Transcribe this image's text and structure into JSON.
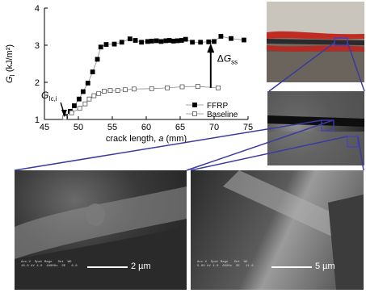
{
  "chart_data": {
    "type": "line",
    "xlabel_prefix": "crack length, ",
    "xlabel_var": "a",
    "xlabel_suffix": " (mm)",
    "ylabel_var": "G",
    "ylabel_sub": "I",
    "ylabel_unit": " (kJ/m²)",
    "xlim": [
      45,
      75
    ],
    "ylim": [
      1,
      4
    ],
    "x_ticks": [
      "45",
      "50",
      "55",
      "60",
      "65",
      "70",
      "75"
    ],
    "y_ticks": [
      "1",
      "2",
      "3",
      "4"
    ],
    "grid": false,
    "legend_position": "bottom-right",
    "series": [
      {
        "name": "FFRP",
        "marker": "filled-square",
        "points": [
          [
            48.1,
            1.08
          ],
          [
            48.8,
            1.22
          ],
          [
            49.4,
            1.37
          ],
          [
            50.1,
            1.55
          ],
          [
            50.7,
            1.75
          ],
          [
            51.4,
            1.98
          ],
          [
            52.1,
            2.28
          ],
          [
            52.8,
            2.62
          ],
          [
            53.3,
            2.95
          ],
          [
            54.1,
            3.02
          ],
          [
            55.3,
            3.03
          ],
          [
            56.4,
            3.08
          ],
          [
            57.6,
            3.17
          ],
          [
            58.4,
            3.13
          ],
          [
            59.3,
            3.08
          ],
          [
            60.2,
            3.1
          ],
          [
            60.8,
            3.11
          ],
          [
            61.5,
            3.12
          ],
          [
            62.2,
            3.1
          ],
          [
            62.9,
            3.12
          ],
          [
            63.4,
            3.13
          ],
          [
            64.0,
            3.11
          ],
          [
            64.6,
            3.12
          ],
          [
            65.2,
            3.13
          ],
          [
            65.8,
            3.16
          ],
          [
            66.8,
            3.08
          ],
          [
            68.0,
            3.08
          ],
          [
            69.2,
            3.09
          ],
          [
            70.0,
            3.1
          ],
          [
            71.0,
            3.24
          ],
          [
            72.5,
            3.18
          ],
          [
            74.4,
            3.14
          ]
        ]
      },
      {
        "name": "Baseline",
        "marker": "open-square",
        "points": [
          [
            48.0,
            1.05
          ],
          [
            49.0,
            1.18
          ],
          [
            50.2,
            1.3
          ],
          [
            51.0,
            1.42
          ],
          [
            51.6,
            1.55
          ],
          [
            52.3,
            1.64
          ],
          [
            53.0,
            1.7
          ],
          [
            53.8,
            1.76
          ],
          [
            54.7,
            1.78
          ],
          [
            55.8,
            1.78
          ],
          [
            56.9,
            1.8
          ],
          [
            58.2,
            1.82
          ],
          [
            60.8,
            1.83
          ],
          [
            63.1,
            1.85
          ],
          [
            65.3,
            1.88
          ],
          [
            67.6,
            1.89
          ],
          [
            70.6,
            1.85
          ]
        ]
      }
    ],
    "annotations": {
      "gic_var": "G",
      "gic_sub": "Ic,i",
      "delta_g_prefix": "Δ",
      "delta_g_var": "G",
      "delta_g_sub": "ss"
    }
  },
  "scale_bars": {
    "left": "2 µm",
    "right": "5 µm"
  },
  "colors": {
    "zoom_lines": "#3a3aa0",
    "axis": "#000000",
    "series_line": "#8a8a8a"
  }
}
